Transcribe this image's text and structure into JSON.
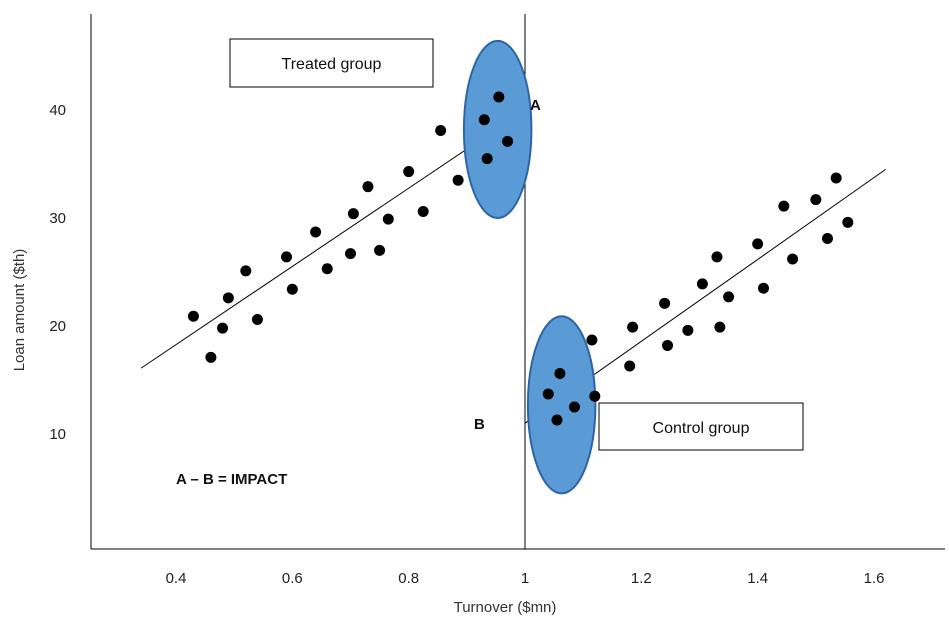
{
  "chart_data": {
    "type": "scatter",
    "title": "",
    "xlabel": "Turnover ($mn)",
    "ylabel": "Loan amount ($th)",
    "x_ticks": [
      0.4,
      0.6,
      0.8,
      1,
      1.2,
      1.4,
      1.6
    ],
    "x_tick_labels": [
      "0.4",
      "0.6",
      "0.8",
      "1",
      "1.2",
      "1.4",
      "1.6"
    ],
    "y_ticks": [
      10,
      20,
      30,
      40
    ],
    "y_tick_labels": [
      "10",
      "20",
      "30",
      "40"
    ],
    "xlim": [
      0.25,
      1.83
    ],
    "ylim": [
      0,
      49
    ],
    "grid": false,
    "cutoff_x": 1,
    "series": [
      {
        "group": "treated",
        "points": [
          [
            0.43,
            20.9
          ],
          [
            0.46,
            17.1
          ],
          [
            0.48,
            19.8
          ],
          [
            0.49,
            22.6
          ],
          [
            0.52,
            25.1
          ],
          [
            0.54,
            20.6
          ],
          [
            0.59,
            26.4
          ],
          [
            0.6,
            23.4
          ],
          [
            0.64,
            28.7
          ],
          [
            0.66,
            25.3
          ],
          [
            0.7,
            26.7
          ],
          [
            0.705,
            30.4
          ],
          [
            0.73,
            32.9
          ],
          [
            0.75,
            27.0
          ],
          [
            0.765,
            29.9
          ],
          [
            0.8,
            34.3
          ],
          [
            0.825,
            30.6
          ],
          [
            0.855,
            38.1
          ],
          [
            0.885,
            33.5
          ],
          [
            0.93,
            39.1
          ],
          [
            0.935,
            35.5
          ],
          [
            0.955,
            41.2
          ],
          [
            0.97,
            37.1
          ]
        ],
        "trend": [
          [
            0.34,
            16.1
          ],
          [
            1.0,
            40.0
          ]
        ]
      },
      {
        "group": "control",
        "points": [
          [
            1.04,
            13.7
          ],
          [
            1.055,
            11.3
          ],
          [
            1.06,
            15.6
          ],
          [
            1.085,
            12.5
          ],
          [
            1.115,
            18.7
          ],
          [
            1.12,
            13.5
          ],
          [
            1.18,
            16.3
          ],
          [
            1.185,
            19.9
          ],
          [
            1.24,
            22.1
          ],
          [
            1.245,
            18.2
          ],
          [
            1.28,
            19.6
          ],
          [
            1.305,
            23.9
          ],
          [
            1.33,
            26.4
          ],
          [
            1.335,
            19.9
          ],
          [
            1.35,
            22.7
          ],
          [
            1.4,
            27.6
          ],
          [
            1.41,
            23.5
          ],
          [
            1.445,
            31.1
          ],
          [
            1.46,
            26.2
          ],
          [
            1.5,
            31.7
          ],
          [
            1.52,
            28.1
          ],
          [
            1.535,
            33.7
          ],
          [
            1.555,
            29.6
          ]
        ],
        "trend": [
          [
            1.0,
            11.0
          ],
          [
            1.62,
            34.5
          ]
        ]
      }
    ],
    "highlight_ellipses": [
      {
        "group": "treated",
        "cx": 0.953,
        "cy": 38.2,
        "rx": 0.058,
        "ry": 8.2
      },
      {
        "group": "control",
        "cx": 1.063,
        "cy": 12.7,
        "rx": 0.058,
        "ry": 8.2
      }
    ],
    "labels": {
      "treated_box": "Treated group",
      "control_box": "Control group",
      "point_a": "A",
      "point_b": "B",
      "impact": "A – B = IMPACT"
    },
    "colors": {
      "point": "#000000",
      "line": "#000000",
      "ellipse_fill": "#5b9bd5",
      "ellipse_stroke": "#2e64a6"
    }
  }
}
